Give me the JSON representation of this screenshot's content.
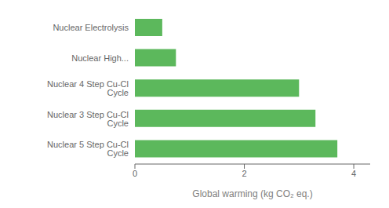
{
  "chart_data": {
    "type": "bar",
    "orientation": "horizontal",
    "categories": [
      "Nuclear 5 Step Cu-Cl Cycle",
      "Nuclear 3 Step Cu-Cl Cycle",
      "Nuclear 4 Step Cu-Cl Cycle",
      "Nuclear High...",
      "Nuclear Electrolysis"
    ],
    "values": [
      3.7,
      3.3,
      3.0,
      0.75,
      0.5
    ],
    "color": "#5cb85c",
    "xlabel": "Global warming (kg CO₂ eq.)",
    "xlim": [
      0,
      4.3
    ],
    "xticks": [
      0,
      2,
      4
    ]
  }
}
